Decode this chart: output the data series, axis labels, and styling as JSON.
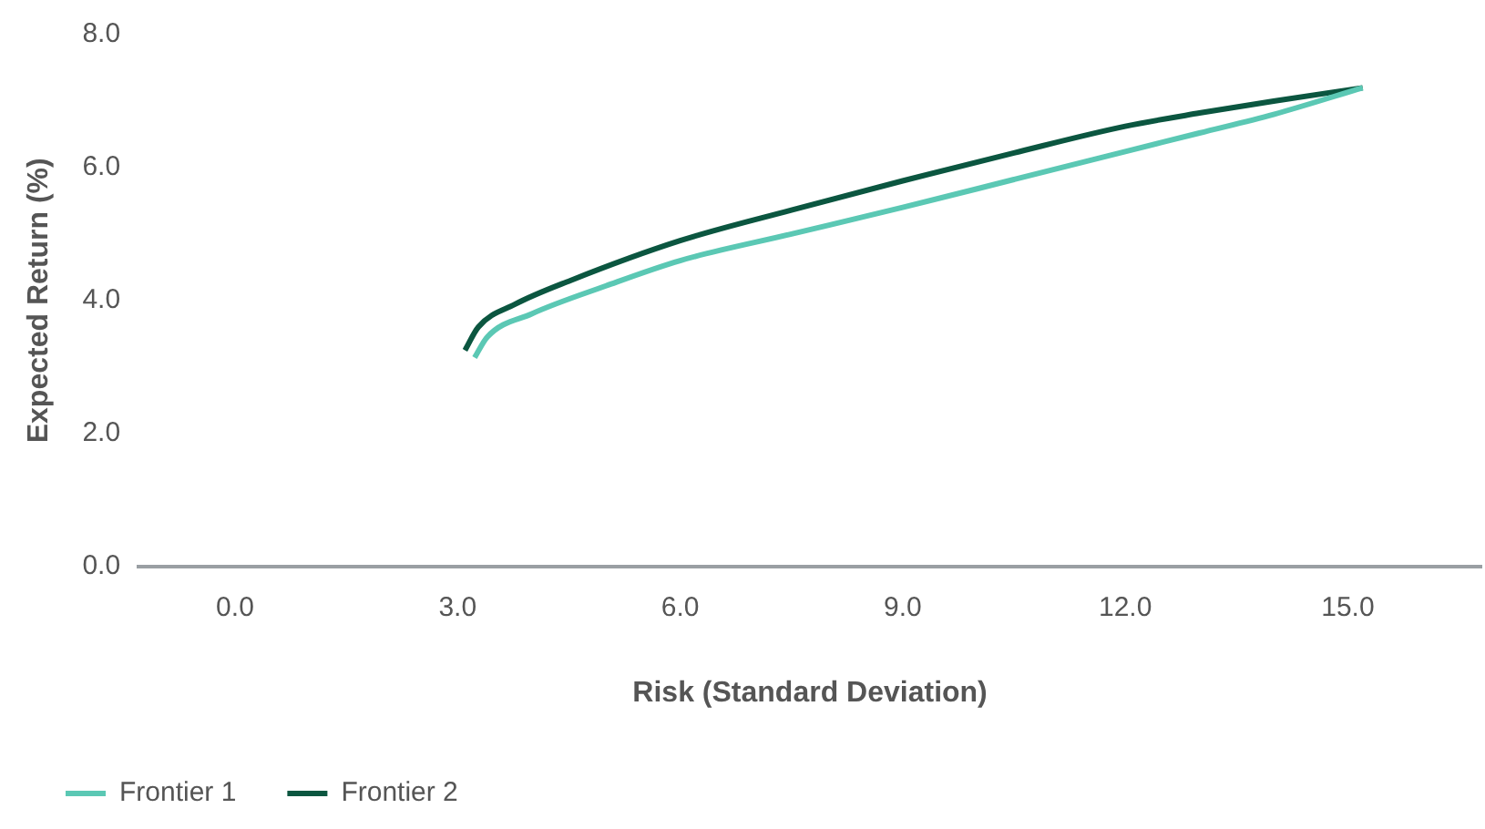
{
  "chart_data": {
    "type": "line",
    "xlabel": "Risk (Standard Deviation)",
    "ylabel": "Expected Return (%)",
    "xlim": [
      -1.3,
      16.8
    ],
    "xticks": [
      {
        "value": 0,
        "label": "0.0"
      },
      {
        "value": 3,
        "label": "3.0"
      },
      {
        "value": 6,
        "label": "6.0"
      },
      {
        "value": 9,
        "label": "9.0"
      },
      {
        "value": 12,
        "label": "12.0"
      },
      {
        "value": 15,
        "label": "15.0"
      }
    ],
    "ylim": [
      0,
      8
    ],
    "yticks": [
      {
        "value": 0,
        "label": "0.0"
      },
      {
        "value": 2,
        "label": "2.0"
      },
      {
        "value": 4,
        "label": "4.0"
      },
      {
        "value": 6,
        "label": "6.0"
      },
      {
        "value": 8,
        "label": "8.0"
      }
    ],
    "grid": false,
    "legend": "bottom left",
    "marker": "none",
    "line_style": "solid",
    "series": [
      {
        "name": "Frontier 1",
        "color": "#5bc8b4",
        "x": [
          3.23,
          3.4,
          4.0,
          5.0,
          6.0,
          7.5,
          9.0,
          10.5,
          12.0,
          13.0,
          14.0,
          15.2
        ],
        "values": [
          3.14,
          3.45,
          3.8,
          4.22,
          4.6,
          5.0,
          5.4,
          5.82,
          6.24,
          6.52,
          6.8,
          7.2
        ]
      },
      {
        "name": "Frontier 2",
        "color": "#0b5640",
        "x": [
          3.1,
          3.28,
          3.77,
          4.52,
          6.0,
          7.5,
          9.0,
          10.5,
          12.0,
          13.0,
          14.0,
          15.2
        ],
        "values": [
          3.25,
          3.6,
          3.94,
          4.3,
          4.9,
          5.36,
          5.8,
          6.22,
          6.62,
          6.82,
          7.0,
          7.2
        ]
      }
    ]
  }
}
